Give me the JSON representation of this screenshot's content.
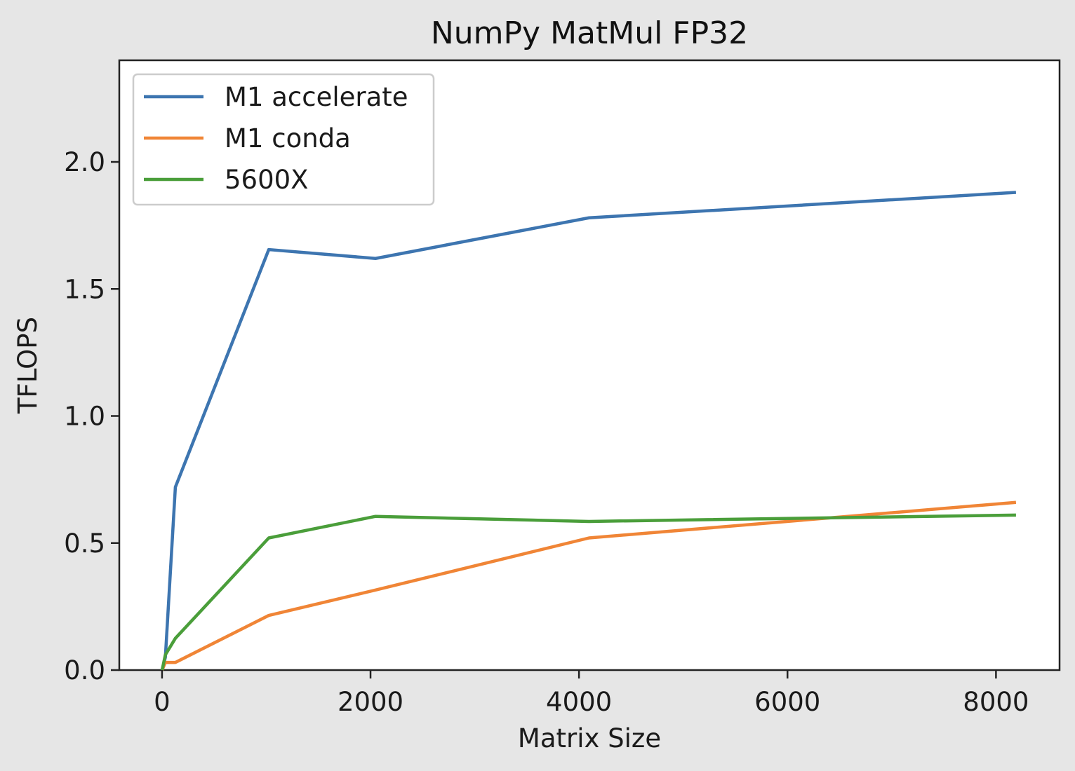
{
  "chart_data": {
    "type": "line",
    "title": "NumPy MatMul FP32",
    "xlabel": "Matrix Size",
    "ylabel": "TFLOPS",
    "xlim": [
      -410,
      8610
    ],
    "ylim": [
      0,
      2.4
    ],
    "xticks": [
      0,
      2000,
      4000,
      6000,
      8000
    ],
    "xtick_labels": [
      "0",
      "2000",
      "4000",
      "6000",
      "8000"
    ],
    "yticks": [
      0,
      0.5,
      1.0,
      1.5,
      2.0
    ],
    "ytick_labels": [
      "0.0",
      "0.5",
      "1.0",
      "1.5",
      "2.0"
    ],
    "grid": false,
    "legend_position": "upper-left",
    "x": [
      1,
      32,
      128,
      1024,
      2048,
      4096,
      8192
    ],
    "series": [
      {
        "name": "M1 accelerate",
        "color": "#3d75b0",
        "values": [
          0.0,
          0.05,
          0.72,
          1.655,
          1.62,
          1.78,
          1.88
        ]
      },
      {
        "name": "M1 conda",
        "color": "#f08536",
        "values": [
          0.0,
          0.03,
          0.03,
          0.215,
          0.315,
          0.52,
          0.66
        ]
      },
      {
        "name": "5600X",
        "color": "#4a9e3a",
        "values": [
          0.0,
          0.06,
          0.125,
          0.52,
          0.605,
          0.585,
          0.61
        ]
      }
    ]
  }
}
